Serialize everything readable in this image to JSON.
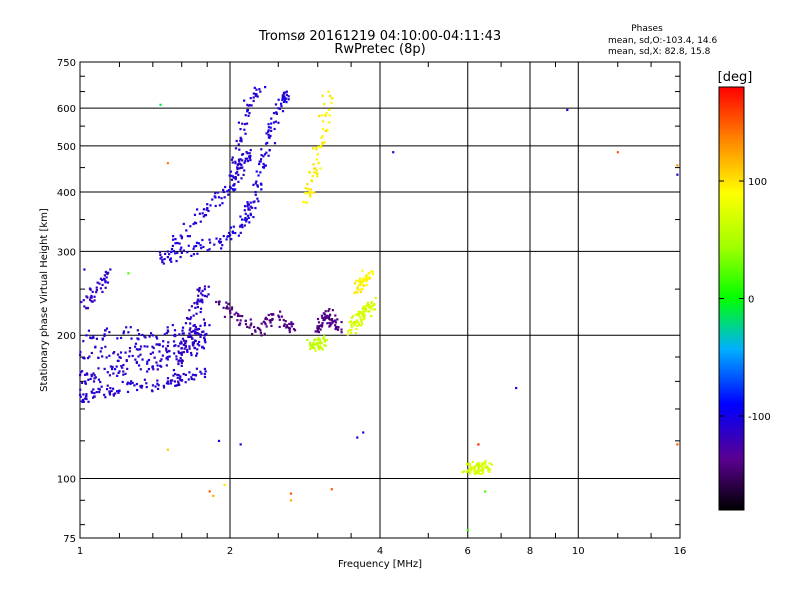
{
  "header": {
    "title_line1": "Tromsø 20161219 04:10:00-04:11:43",
    "title_line2": "RwPretec (8p)"
  },
  "stats": {
    "heading": "Phases",
    "line_o": "mean, sd,O:-103.4, 14.6",
    "line_x": "mean, sd,X:  82.8, 15.8"
  },
  "colorbar": {
    "unit": "[deg]",
    "min": -180,
    "max": 180,
    "tick_values": [
      100,
      0,
      -100
    ],
    "tick_labels": [
      "100",
      "0",
      "-100"
    ]
  },
  "chart_data": {
    "type": "scatter",
    "xlabel": "Frequency [MHz]",
    "ylabel": "Stationary phase Virtual Height [km]",
    "xscale": "log",
    "yscale": "log",
    "xlim": [
      1,
      16
    ],
    "ylim": [
      75,
      750
    ],
    "xticks": [
      1,
      2,
      4,
      6,
      8,
      10,
      16
    ],
    "xtick_labels": [
      "1",
      "2",
      "4",
      "6",
      "8",
      "10",
      "16"
    ],
    "yticks": [
      75,
      100,
      200,
      300,
      400,
      500,
      600,
      750
    ],
    "ytick_labels": [
      "75",
      "100",
      "200",
      "300",
      "400",
      "500",
      "600",
      "750"
    ],
    "grid": true,
    "color_encoding": "phase [deg]",
    "traces": [
      {
        "x": [
          1.0,
          1.03,
          1.08,
          1.15,
          1.2,
          1.3,
          1.4,
          1.5,
          1.6,
          1.7,
          1.78
        ],
        "y": [
          150,
          147,
          152,
          155,
          153,
          158,
          157,
          160,
          161,
          165,
          170
        ],
        "phase": -110
      },
      {
        "x": [
          1.0,
          1.05,
          1.12,
          1.2,
          1.3,
          1.4,
          1.5,
          1.6,
          1.7,
          1.78
        ],
        "y": [
          165,
          162,
          170,
          168,
          175,
          172,
          178,
          182,
          188,
          195
        ],
        "phase": -110
      },
      {
        "x": [
          1.0,
          1.1,
          1.2,
          1.3,
          1.4,
          1.5,
          1.6,
          1.7,
          1.78
        ],
        "y": [
          182,
          185,
          180,
          187,
          184,
          190,
          188,
          195,
          200
        ],
        "phase": -112
      },
      {
        "x": [
          1.03,
          1.12,
          1.25,
          1.4,
          1.55,
          1.7,
          1.78
        ],
        "y": [
          200,
          201,
          203,
          200,
          205,
          202,
          210
        ],
        "phase": -110
      },
      {
        "x": [
          1.55,
          1.6,
          1.63,
          1.66,
          1.69,
          1.72,
          1.75,
          1.78
        ],
        "y": [
          160,
          175,
          190,
          205,
          220,
          235,
          245,
          250
        ],
        "phase": -115
      },
      {
        "x": [
          1.02,
          1.05,
          1.08,
          1.12,
          1.15
        ],
        "y": [
          230,
          240,
          252,
          262,
          275
        ],
        "phase": -115
      },
      {
        "x": [
          1.45,
          1.5,
          1.6,
          1.75,
          1.9,
          2.0,
          2.1,
          2.15,
          2.2
        ],
        "y": [
          290,
          292,
          298,
          305,
          315,
          325,
          340,
          360,
          380
        ],
        "phase": -105
      },
      {
        "x": [
          1.5,
          1.6,
          1.7,
          1.8,
          1.9,
          2.0,
          2.05,
          2.1,
          2.15,
          2.2
        ],
        "y": [
          300,
          320,
          345,
          370,
          390,
          410,
          430,
          450,
          470,
          490
        ],
        "phase": -108
      },
      {
        "x": [
          2.0,
          2.05,
          2.1,
          2.15,
          2.2,
          2.3
        ],
        "y": [
          410,
          460,
          520,
          580,
          630,
          650
        ],
        "phase": -110
      },
      {
        "x": [
          2.2,
          2.25,
          2.3,
          2.35,
          2.4,
          2.45,
          2.5,
          2.55,
          2.6
        ],
        "y": [
          360,
          400,
          440,
          480,
          520,
          560,
          600,
          630,
          650
        ],
        "phase": -105
      },
      {
        "x": [
          2.85,
          2.9,
          2.95,
          3.0,
          3.05,
          3.1,
          3.15
        ],
        "y": [
          380,
          400,
          440,
          480,
          520,
          580,
          650
        ],
        "phase": 95
      },
      {
        "x": [
          1.9,
          2.0,
          2.1,
          2.2,
          2.3,
          2.4,
          2.5,
          2.6,
          2.7
        ],
        "y": [
          235,
          225,
          215,
          210,
          205,
          215,
          220,
          210,
          205
        ],
        "phase": -140
      },
      {
        "x": [
          3.0,
          3.05,
          3.1,
          3.15,
          3.2,
          3.25,
          3.3
        ],
        "y": [
          205,
          210,
          218,
          225,
          215,
          210,
          208
        ],
        "phase": -140
      },
      {
        "x": [
          3.5,
          3.55,
          3.6,
          3.65,
          3.7,
          3.75,
          3.8,
          3.85
        ],
        "y": [
          205,
          210,
          215,
          218,
          222,
          225,
          230,
          235
        ],
        "phase": 70
      },
      {
        "x": [
          3.6,
          3.65,
          3.7,
          3.75,
          3.8
        ],
        "y": [
          250,
          255,
          260,
          265,
          270
        ],
        "phase": 95
      },
      {
        "x": [
          2.9,
          2.95,
          3.0,
          3.05,
          3.1
        ],
        "y": [
          190,
          191,
          192,
          193,
          194
        ],
        "phase": 60
      },
      {
        "x": [
          6.0,
          6.1,
          6.2,
          6.3,
          6.4,
          6.5,
          6.6
        ],
        "y": [
          104,
          105,
          106,
          105,
          104,
          106,
          105
        ],
        "phase": 70
      }
    ],
    "scatter": [
      {
        "x": 1.02,
        "y": 275,
        "phase": -110
      },
      {
        "x": 1.25,
        "y": 270,
        "phase": 20
      },
      {
        "x": 1.45,
        "y": 610,
        "phase": -10
      },
      {
        "x": 1.5,
        "y": 460,
        "phase": 140
      },
      {
        "x": 1.5,
        "y": 115,
        "phase": 110
      },
      {
        "x": 1.82,
        "y": 94,
        "phase": 150
      },
      {
        "x": 1.85,
        "y": 92,
        "phase": 120
      },
      {
        "x": 1.9,
        "y": 120,
        "phase": -100
      },
      {
        "x": 1.95,
        "y": 97,
        "phase": 100
      },
      {
        "x": 2.1,
        "y": 118,
        "phase": -110
      },
      {
        "x": 2.65,
        "y": 93,
        "phase": 150
      },
      {
        "x": 2.65,
        "y": 90,
        "phase": 120
      },
      {
        "x": 3.2,
        "y": 95,
        "phase": 150
      },
      {
        "x": 3.6,
        "y": 122,
        "phase": -105
      },
      {
        "x": 3.7,
        "y": 125,
        "phase": -110
      },
      {
        "x": 4.25,
        "y": 485,
        "phase": -110
      },
      {
        "x": 6.0,
        "y": 78,
        "phase": 10
      },
      {
        "x": 6.3,
        "y": 118,
        "phase": 170
      },
      {
        "x": 6.5,
        "y": 94,
        "phase": 20
      },
      {
        "x": 7.5,
        "y": 155,
        "phase": -110
      },
      {
        "x": 9.5,
        "y": 595,
        "phase": -110
      },
      {
        "x": 12.0,
        "y": 485,
        "phase": 150
      },
      {
        "x": 15.8,
        "y": 455,
        "phase": 130
      },
      {
        "x": 15.8,
        "y": 435,
        "phase": -110
      },
      {
        "x": 15.8,
        "y": 118,
        "phase": 150
      }
    ]
  }
}
